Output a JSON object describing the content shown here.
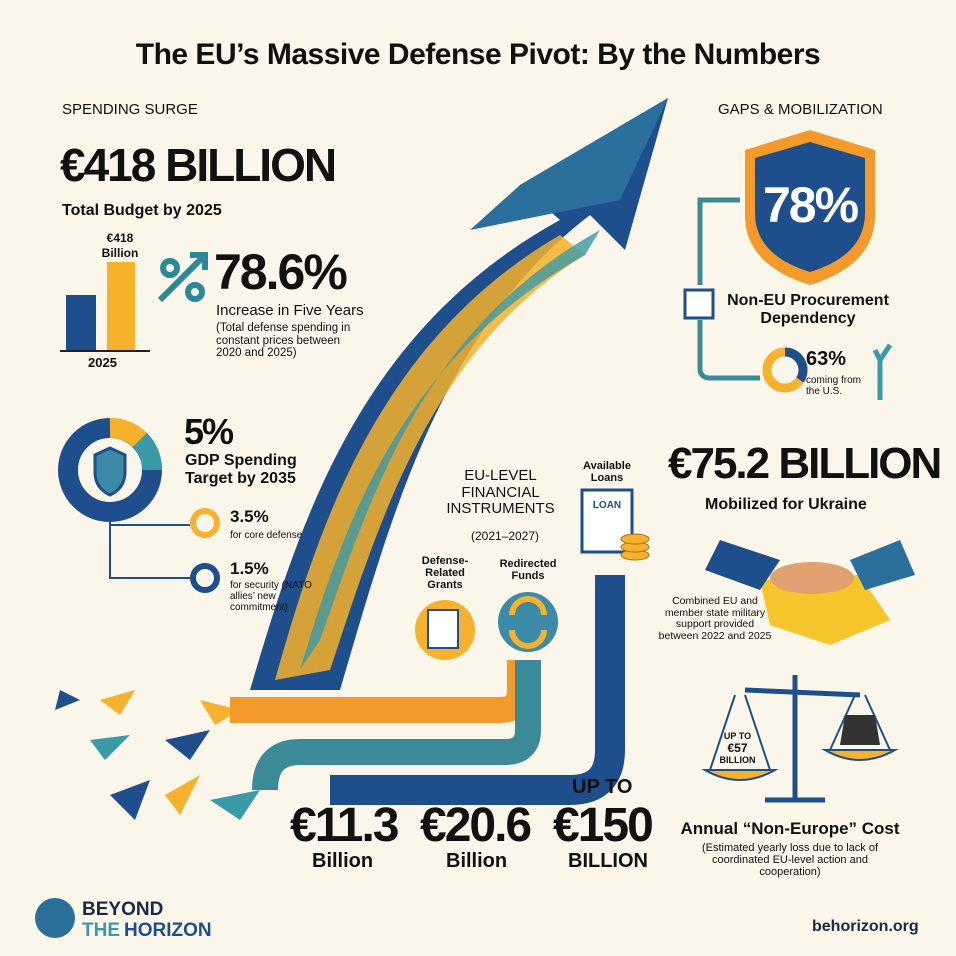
{
  "header": {
    "title": "The EU’s Massive Defense Pivot: By the Numbers"
  },
  "spending": {
    "section": "SPENDING SURGE",
    "total": "€418 BILLION",
    "total_label": "Total Budget by 2025",
    "bar_label": [
      "€418",
      "Billion"
    ],
    "bar_year": "2025",
    "increase": "78.6%",
    "increase_label": "Increase in Five Years",
    "increase_note": "(Total defense spending in constant prices between 2020 and 2025)",
    "gdp": "5%",
    "gdp_label": "GDP Spending Target by 2035",
    "core": "3.5%",
    "core_label": "for core defense",
    "security": "1.5%",
    "security_label": "for security (NATO allies’ new commitment)"
  },
  "instruments": {
    "title": "EU-LEVEL FINANCIAL INSTRUMENTS",
    "period": "(2021–2027)",
    "loans_label": "Available Loans",
    "loan_doc": "LOAN",
    "grants_label": "Defense-Related Grants",
    "funds_label": "Redirected Funds",
    "grants_value": "€11.3",
    "grants_unit": "Billion",
    "funds_value": "€20.6",
    "funds_unit": "Billion",
    "loans_prefix": "UP TO",
    "loans_value": "€150",
    "loans_unit": "BILLION"
  },
  "gaps": {
    "section": "GAPS & MOBILIZATION",
    "dependency": "78%",
    "dependency_label": "Non-EU Procurement Dependency",
    "us_share": "63%",
    "us_label": "coming from the U.S.",
    "ukraine": "€75.2 BILLION",
    "ukraine_label": "Mobilized for Ukraine",
    "ukraine_note": "Combined EU and member state military support provided between 2022 and 2025",
    "scale_label": [
      "UP TO",
      "€57",
      "BILLION"
    ],
    "cost_label": "Annual “Non-Europe” Cost",
    "cost_note": "(Estimated yearly loss due to lack of coordinated EU-level action and cooperation)"
  },
  "footer": {
    "logo": [
      "BEYOND",
      "THE",
      "HORIZON"
    ],
    "url": "behorizon.org"
  }
}
